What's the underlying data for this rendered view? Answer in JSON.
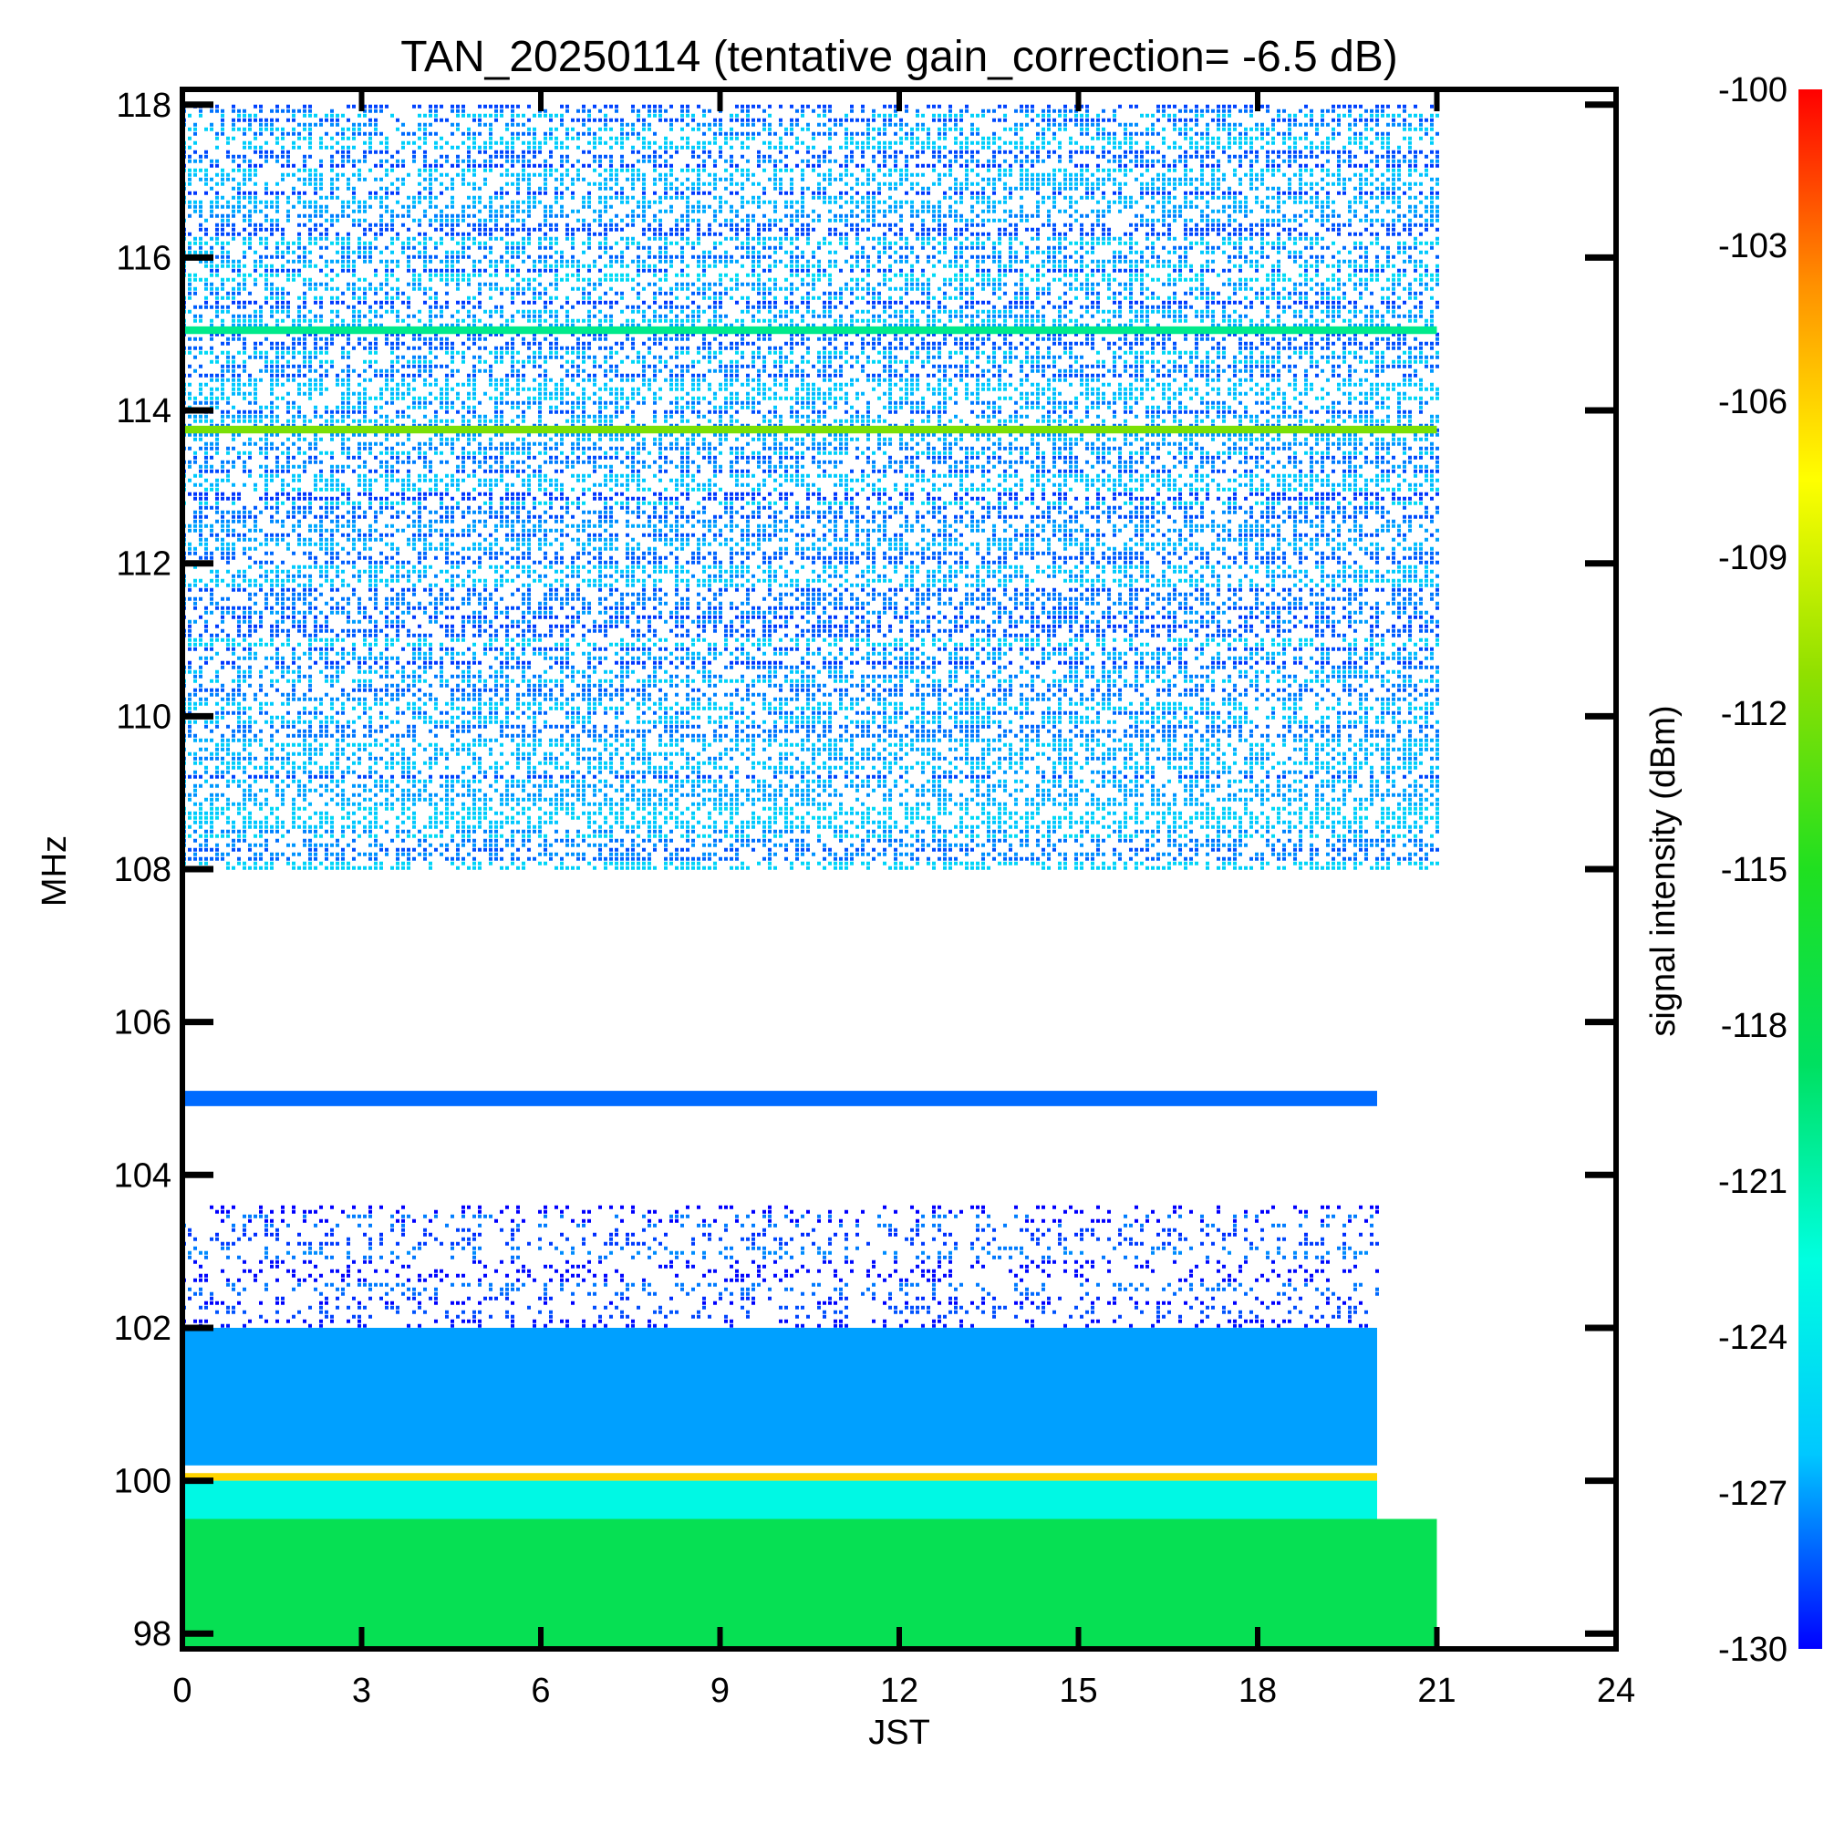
{
  "chart_data": {
    "type": "heatmap",
    "title": "TAN_20250114 (tentative gain_correction= -6.5 dB)",
    "xlabel": "JST",
    "ylabel": "MHz",
    "colorbar_label": "signal intensity (dBm)",
    "xlim": [
      0,
      24
    ],
    "ylim": [
      97.8,
      118.2
    ],
    "x_ticks": [
      0,
      3,
      6,
      9,
      12,
      15,
      18,
      21,
      24
    ],
    "y_ticks": [
      98,
      100,
      102,
      104,
      106,
      108,
      110,
      112,
      114,
      116,
      118
    ],
    "colorbar_range": [
      -130,
      -100
    ],
    "colorbar_ticks": [
      -100,
      -103,
      -106,
      -109,
      -112,
      -115,
      -118,
      -121,
      -124,
      -127,
      -130
    ],
    "colormap": [
      "#0000ff",
      "#00c8ff",
      "#00ffe0",
      "#00e060",
      "#20e020",
      "#90e000",
      "#ffff00",
      "#ff9000",
      "#ff0000"
    ],
    "data_end_time": 21,
    "bands": [
      {
        "freq_range": [
          108.0,
          118.0
        ],
        "time_range": [
          0,
          21
        ],
        "intensity": -127,
        "density": 0.55
      },
      {
        "freq_range": [
          115.0,
          115.1
        ],
        "time_range": [
          0,
          21
        ],
        "intensity": -120
      },
      {
        "freq_range": [
          113.7,
          113.8
        ],
        "time_range": [
          0,
          21
        ],
        "intensity": -112
      },
      {
        "freq_range": [
          104.9,
          105.1
        ],
        "time_range": [
          0,
          20
        ],
        "intensity": -128
      },
      {
        "freq_range": [
          102.0,
          103.6
        ],
        "time_range": [
          0,
          20
        ],
        "intensity": -129,
        "density": 0.25
      },
      {
        "freq_range": [
          100.2,
          102.0
        ],
        "time_range": [
          0,
          20
        ],
        "intensity": -127
      },
      {
        "freq_range": [
          100.0,
          100.1
        ],
        "time_range": [
          0,
          20
        ],
        "intensity": -106
      },
      {
        "freq_range": [
          99.5,
          100.0
        ],
        "time_range": [
          0,
          20
        ],
        "intensity": -123
      },
      {
        "freq_range": [
          97.8,
          99.5
        ],
        "time_range": [
          0,
          21
        ],
        "intensity": -118
      }
    ]
  }
}
